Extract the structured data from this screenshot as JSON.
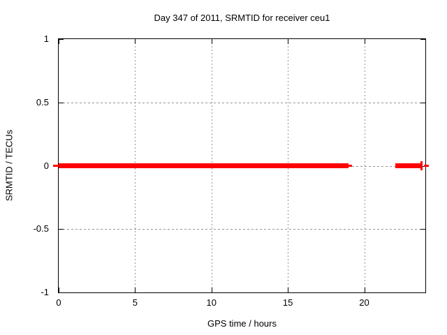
{
  "figure": {
    "background": "#ffffff",
    "text_color": "#000000",
    "grid_color": "#949494",
    "border_color": "#000000"
  },
  "chart_data": {
    "type": "line",
    "title": "Day 347 of 2011, SRMTID for receiver ceu1",
    "xlabel": "GPS time / hours",
    "ylabel": "SRMTID / TECUs",
    "xlim": [
      0,
      24
    ],
    "ylim": [
      -1,
      1
    ],
    "xticks": [
      0,
      5,
      10,
      15,
      20
    ],
    "yticks": [
      1,
      0.5,
      0,
      -0.5,
      -1
    ],
    "grid": true,
    "legend": "none",
    "series": [
      {
        "name": "SRMTID",
        "color": "#ff0000",
        "y_value": 0,
        "segments_hours": [
          [
            0,
            18.97
          ],
          [
            22.03,
            23.67
          ]
        ],
        "thin_dashes_hours": [
          [
            -0.37,
            0
          ],
          [
            18.97,
            19.2
          ],
          [
            23.9,
            24.25
          ]
        ],
        "plus_marker_hours": [
          23.73
        ]
      }
    ]
  }
}
